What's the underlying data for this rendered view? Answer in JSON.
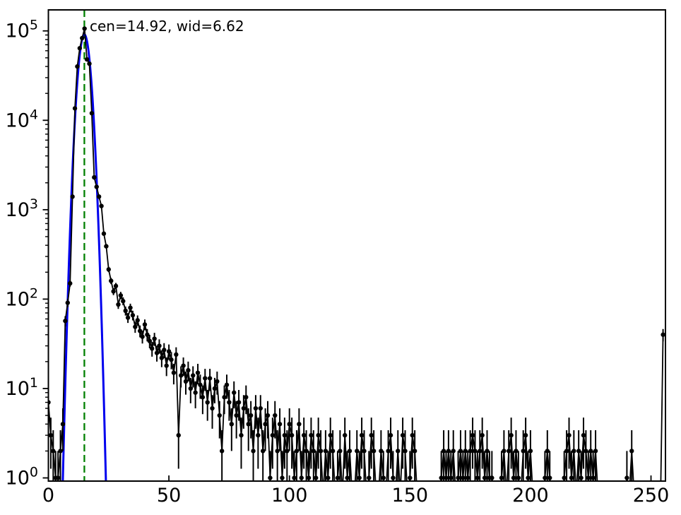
{
  "figure": {
    "background": "#ffffff",
    "description": "Log-scale histogram of values 0-255 with Poisson error bars, Gaussian fit curve and fitted-center marker line"
  },
  "chart_data": {
    "type": "line",
    "yscale": "log",
    "title": "",
    "xlabel": "",
    "ylabel": "",
    "grid": false,
    "legend": null,
    "xlim": [
      0,
      256
    ],
    "ylim_log10": [
      -0.0355,
      5.235
    ],
    "x_ticks": [
      0,
      50,
      100,
      150,
      200,
      250
    ],
    "x_tick_labels": [
      "0",
      "50",
      "100",
      "150",
      "200",
      "250"
    ],
    "y_tick_base": "10",
    "y_tick_exponents": [
      "0",
      "1",
      "2",
      "3",
      "4",
      "5"
    ],
    "annotation": "cen=14.92, wid=6.62",
    "annotation_color": "#008000",
    "vline": {
      "x": 14.92,
      "color": "#008000",
      "style": "dashed"
    },
    "fit": {
      "shape": "gaussian",
      "center": 14.92,
      "width_reported": 6.62,
      "peak_log10": 4.96,
      "log10_falloff_div": 16.0,
      "color": "#0000ee"
    },
    "series": [
      {
        "name": "histogram counts",
        "color": "#000000",
        "marker": "circle",
        "error_model": "sqrt",
        "x_start": 0,
        "x_step": 1,
        "counts": [
          7,
          3,
          2,
          1,
          1,
          2,
          4,
          57,
          91,
          150,
          1400,
          13600,
          40000,
          64000,
          83000,
          106000,
          48000,
          43000,
          12000,
          2300,
          1800,
          1400,
          1100,
          540,
          390,
          215,
          160,
          122,
          140,
          87,
          110,
          95,
          74,
          62,
          80,
          66,
          49,
          58,
          44,
          38,
          52,
          40,
          34,
          28,
          36,
          25,
          30,
          22,
          27,
          18,
          26,
          21,
          15,
          24,
          3,
          14,
          18,
          12,
          16,
          10,
          14,
          9,
          15,
          11,
          8,
          13,
          7,
          13,
          6,
          10,
          12,
          5,
          2,
          8,
          11,
          7,
          4,
          9,
          5,
          7,
          3,
          6,
          8,
          4,
          5,
          2,
          6,
          3,
          6,
          2,
          4,
          5,
          1,
          3,
          5,
          2,
          4,
          1,
          3,
          2,
          4,
          3,
          1,
          2,
          4,
          1,
          3,
          2,
          1,
          3,
          2,
          1,
          3,
          2,
          0,
          2,
          1,
          3,
          2,
          0,
          1,
          2,
          0,
          3,
          1,
          2,
          0,
          0,
          2,
          1,
          3,
          2,
          0,
          1,
          3,
          2,
          0,
          0,
          2,
          1,
          0,
          2,
          3,
          1,
          0,
          2,
          0,
          3,
          2,
          0,
          1,
          3,
          2,
          0,
          0,
          0,
          0,
          0,
          0,
          0,
          0,
          0,
          0,
          1,
          2,
          1,
          2,
          1,
          2,
          0,
          1,
          2,
          1,
          2,
          1,
          2,
          3,
          2,
          1,
          2,
          3,
          1,
          2,
          1,
          1,
          0,
          0,
          0,
          1,
          2,
          0,
          2,
          3,
          1,
          2,
          1,
          0,
          2,
          3,
          1,
          2,
          0,
          0,
          0,
          0,
          0,
          1,
          2,
          1,
          0,
          0,
          0,
          0,
          0,
          1,
          2,
          3,
          1,
          2,
          0,
          2,
          1,
          3,
          2,
          1,
          2,
          1,
          2,
          0,
          0,
          0,
          0,
          0,
          0,
          0,
          0,
          0,
          0,
          0,
          0,
          1,
          0,
          2,
          0,
          0,
          0,
          0,
          0,
          0,
          0,
          0,
          0,
          0,
          0,
          0,
          40
        ]
      }
    ]
  }
}
